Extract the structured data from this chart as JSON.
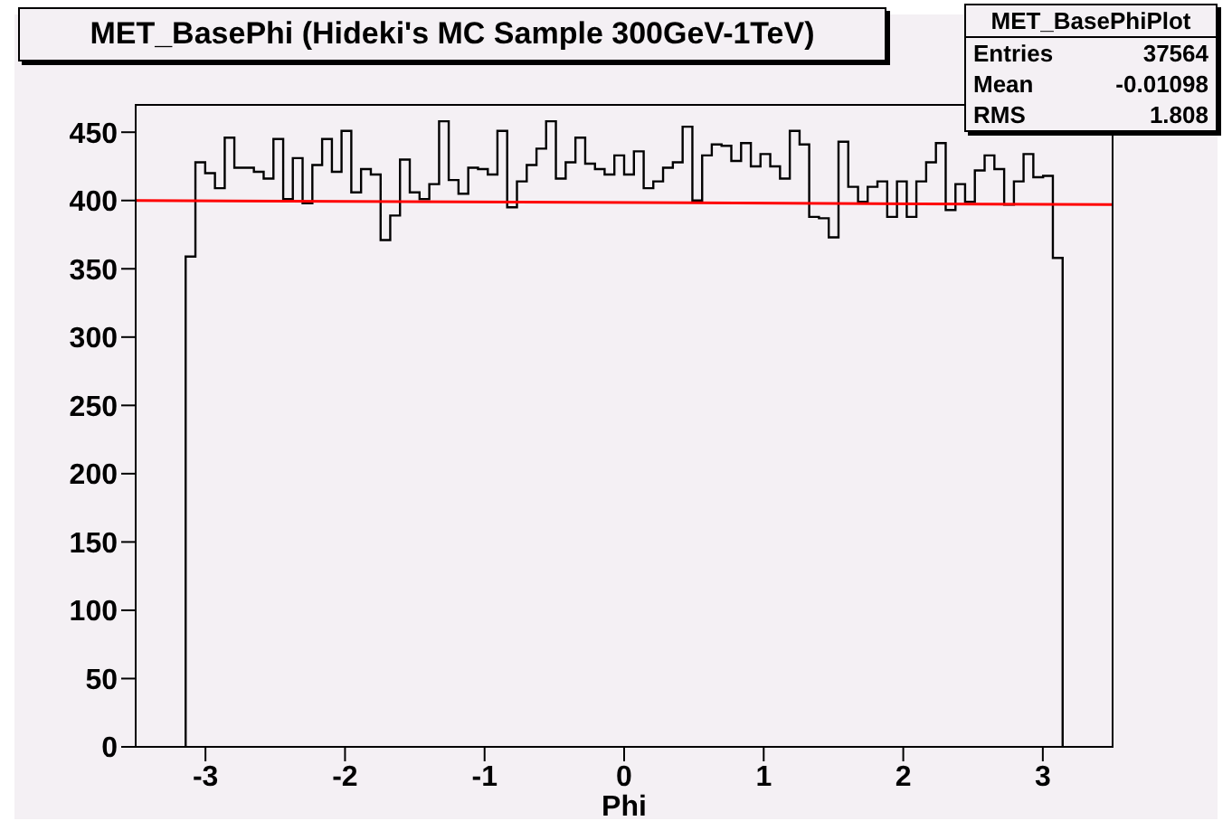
{
  "chart_data": {
    "type": "histogram",
    "title": "MET_BasePhi (Hideki's MC Sample 300GeV-1TeV)",
    "xlabel": "Phi",
    "bins": [
      -3.142,
      -3.072,
      -3.002,
      -2.932,
      -2.862,
      -2.793,
      -2.723,
      -2.653,
      -2.583,
      -2.513,
      -2.443,
      -2.374,
      -2.304,
      -2.234,
      -2.164,
      -2.094,
      -2.025,
      -1.955,
      -1.885,
      -1.815,
      -1.745,
      -1.676,
      -1.606,
      -1.536,
      -1.466,
      -1.396,
      -1.326,
      -1.257,
      -1.187,
      -1.117,
      -1.047,
      -0.977,
      -0.908,
      -0.838,
      -0.768,
      -0.698,
      -0.628,
      -0.559,
      -0.489,
      -0.419,
      -0.349,
      -0.279,
      -0.209,
      -0.14,
      -0.07,
      0,
      0.07,
      0.14,
      0.209,
      0.279,
      0.349,
      0.419,
      0.489,
      0.559,
      0.628,
      0.698,
      0.768,
      0.838,
      0.908,
      0.977,
      1.047,
      1.117,
      1.187,
      1.257,
      1.326,
      1.396,
      1.466,
      1.536,
      1.606,
      1.676,
      1.745,
      1.815,
      1.885,
      1.955,
      2.025,
      2.094,
      2.164,
      2.234,
      2.304,
      2.374,
      2.443,
      2.513,
      2.583,
      2.653,
      2.723,
      2.793,
      2.862,
      2.932,
      3.002,
      3.072,
      3.142
    ],
    "values": [
      359,
      428,
      420,
      409,
      446,
      424,
      424,
      421,
      416,
      445,
      401,
      431,
      398,
      426,
      445,
      421,
      451,
      406,
      423,
      419,
      371,
      389,
      430,
      406,
      401,
      412,
      458,
      415,
      405,
      424,
      423,
      419,
      451,
      395,
      414,
      426,
      438,
      458,
      416,
      428,
      446,
      427,
      423,
      419,
      433,
      419,
      436,
      409,
      414,
      424,
      428,
      454,
      400,
      433,
      441,
      440,
      429,
      442,
      425,
      434,
      425,
      416,
      451,
      441,
      388,
      387,
      373,
      443,
      410,
      399,
      410,
      414,
      388,
      414,
      388,
      414,
      428,
      442,
      393,
      412,
      399,
      422,
      433,
      423,
      397,
      414,
      434,
      417,
      418,
      358
    ],
    "color": "#000000",
    "series": [
      {
        "type": "line",
        "x": [
          -3.5,
          3.5
        ],
        "values": [
          400,
          397
        ],
        "color": "#ff0000"
      }
    ],
    "xlim": [
      -3.5,
      3.5
    ],
    "xticks": [
      -3,
      -2,
      -1,
      0,
      1,
      2,
      3
    ],
    "ylim": [
      0,
      470
    ],
    "yticks": [
      0,
      50,
      100,
      150,
      200,
      250,
      300,
      350,
      400,
      450
    ],
    "grid": false,
    "legend": false,
    "annotations": [
      "MET_BasePhiPlot",
      "Entries 37564",
      "Mean -0.01098",
      "RMS 1.808"
    ]
  }
}
